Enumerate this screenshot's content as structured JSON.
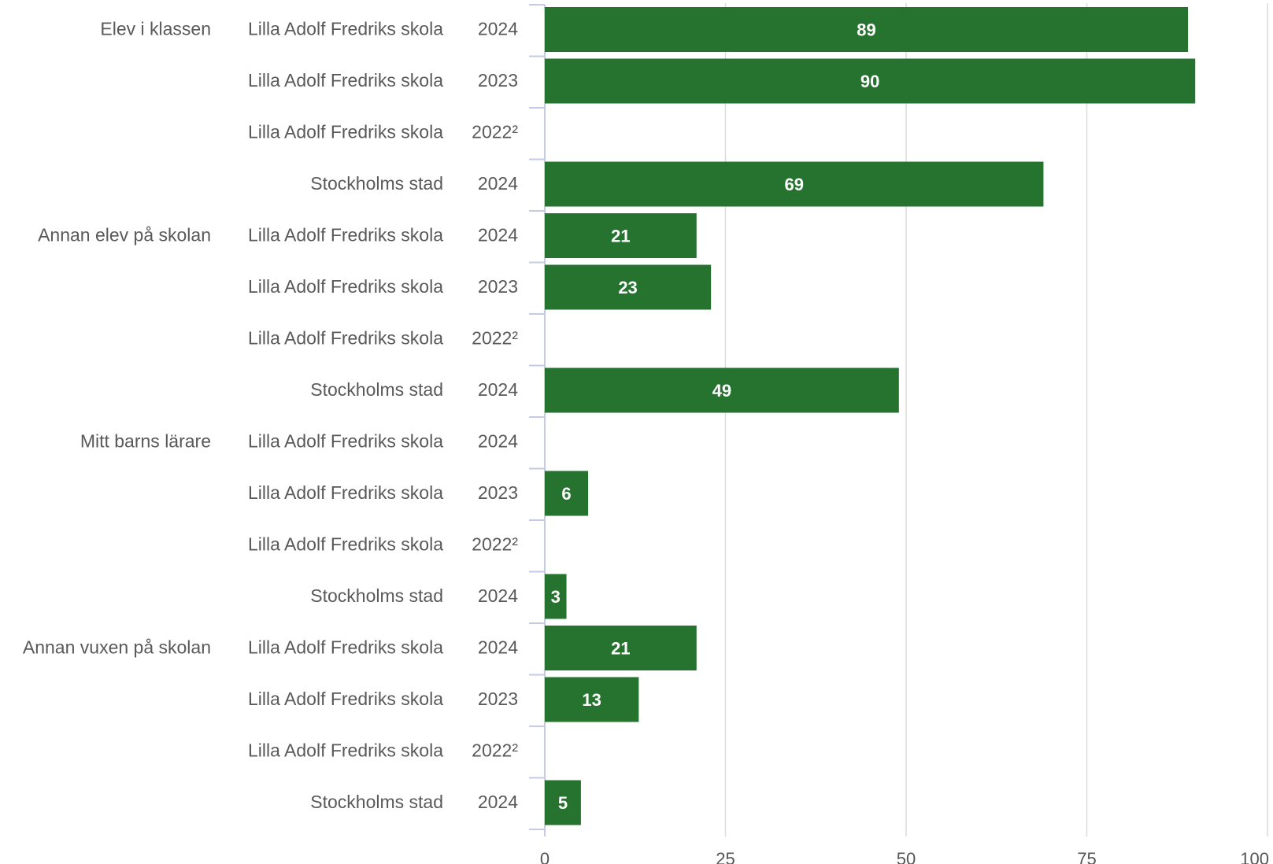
{
  "chart_data": {
    "type": "bar",
    "orientation": "horizontal",
    "bar_color": "#267330",
    "grid": true,
    "xlim": [
      0,
      100
    ],
    "xticks": [
      "0",
      "25",
      "50",
      "75",
      "100"
    ],
    "groups": [
      {
        "label": "Elev i klassen",
        "rows": [
          {
            "entity": "Lilla Adolf Fredriks skola",
            "year": "2024",
            "value": 89
          },
          {
            "entity": "Lilla Adolf Fredriks skola",
            "year": "2023",
            "value": 90
          },
          {
            "entity": "Lilla Adolf Fredriks skola",
            "year": "2022²",
            "value": null
          },
          {
            "entity": "Stockholms stad",
            "year": "2024",
            "value": 69
          }
        ]
      },
      {
        "label": "Annan elev på skolan",
        "rows": [
          {
            "entity": "Lilla Adolf Fredriks skola",
            "year": "2024",
            "value": 21
          },
          {
            "entity": "Lilla Adolf Fredriks skola",
            "year": "2023",
            "value": 23
          },
          {
            "entity": "Lilla Adolf Fredriks skola",
            "year": "2022²",
            "value": null
          },
          {
            "entity": "Stockholms stad",
            "year": "2024",
            "value": 49
          }
        ]
      },
      {
        "label": "Mitt barns lärare",
        "rows": [
          {
            "entity": "Lilla Adolf Fredriks skola",
            "year": "2024",
            "value": null
          },
          {
            "entity": "Lilla Adolf Fredriks skola",
            "year": "2023",
            "value": 6
          },
          {
            "entity": "Lilla Adolf Fredriks skola",
            "year": "2022²",
            "value": null
          },
          {
            "entity": "Stockholms stad",
            "year": "2024",
            "value": 3
          }
        ]
      },
      {
        "label": "Annan vuxen på skolan",
        "rows": [
          {
            "entity": "Lilla Adolf Fredriks skola",
            "year": "2024",
            "value": 21
          },
          {
            "entity": "Lilla Adolf Fredriks skola",
            "year": "2023",
            "value": 13
          },
          {
            "entity": "Lilla Adolf Fredriks skola",
            "year": "2022²",
            "value": null
          },
          {
            "entity": "Stockholms stad",
            "year": "2024",
            "value": 5
          }
        ]
      }
    ]
  }
}
